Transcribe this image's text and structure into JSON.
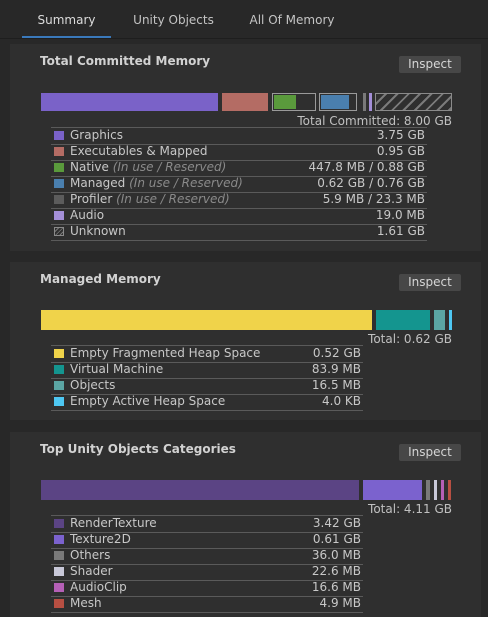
{
  "tabs": [
    {
      "label": "Summary",
      "active": true
    },
    {
      "label": "Unity Objects",
      "active": false
    },
    {
      "label": "All Of Memory",
      "active": false
    }
  ],
  "colors": {
    "graphics": "#7a62c8",
    "executables": "#b46c64",
    "native": "#5a9a3c",
    "managed": "#4a7fae",
    "profiler": "#5c5c5c",
    "audio": "#a48fd8",
    "heap": "#f0d34a",
    "vm": "#14958f",
    "objects": "#5ba5a3",
    "active_heap": "#4ec7f2",
    "render_texture": "#5b4484",
    "texture2d": "#7b62ce",
    "others": "#7a7a7a",
    "shader": "#c8c8d8",
    "audioclip": "#b560b6",
    "mesh": "#b74f42"
  },
  "committed": {
    "title": "Total Committed Memory",
    "inspect_label": "Inspect",
    "total_label": "Total Committed: 8.00 GB",
    "rows": [
      {
        "label": "Graphics",
        "note": "",
        "value": "3.75 GB",
        "icon": "graphics-swatch-icon",
        "color": "#7a62c8"
      },
      {
        "label": "Executables & Mapped",
        "note": "",
        "value": "0.95 GB",
        "icon": "executables-swatch-icon",
        "color": "#b46c64"
      },
      {
        "label": "Native",
        "note": "(In use / Reserved)",
        "value": "447.8 MB / 0.88 GB",
        "icon": "native-swatch-icon",
        "color": "#5a9a3c"
      },
      {
        "label": "Managed",
        "note": "(In use / Reserved)",
        "value": "0.62 GB / 0.76 GB",
        "icon": "managed-swatch-icon",
        "color": "#4a7fae"
      },
      {
        "label": "Profiler",
        "note": "(In use / Reserved)",
        "value": "5.9 MB / 23.3 MB",
        "icon": "profiler-swatch-icon",
        "color": "#5c5c5c"
      },
      {
        "label": "Audio",
        "note": "",
        "value": "19.0 MB",
        "icon": "audio-swatch-icon",
        "color": "#a48fd8"
      },
      {
        "label": "Unknown",
        "note": "",
        "value": "1.61 GB",
        "icon": "unknown-hatched-swatch-icon",
        "color": "hatched"
      }
    ]
  },
  "managed_memory": {
    "title": "Managed Memory",
    "inspect_label": "Inspect",
    "total_label": "Total: 0.62 GB",
    "rows": [
      {
        "label": "Empty Fragmented Heap Space",
        "value": "0.52 GB",
        "icon": "heap-swatch-icon",
        "color": "#f0d34a"
      },
      {
        "label": "Virtual Machine",
        "value": "83.9 MB",
        "icon": "vm-swatch-icon",
        "color": "#14958f"
      },
      {
        "label": "Objects",
        "value": "16.5 MB",
        "icon": "objects-swatch-icon",
        "color": "#5ba5a3"
      },
      {
        "label": "Empty Active Heap Space",
        "value": "4.0 KB",
        "icon": "active-heap-swatch-icon",
        "color": "#4ec7f2"
      }
    ]
  },
  "top_objects": {
    "title": "Top Unity Objects Categories",
    "inspect_label": "Inspect",
    "total_label": "Total: 4.11 GB",
    "rows": [
      {
        "label": "RenderTexture",
        "value": "3.42 GB",
        "icon": "rendertexture-swatch-icon",
        "color": "#5b4484"
      },
      {
        "label": "Texture2D",
        "value": "0.61 GB",
        "icon": "texture2d-swatch-icon",
        "color": "#7b62ce"
      },
      {
        "label": "Others",
        "value": "36.0 MB",
        "icon": "others-swatch-icon",
        "color": "#7a7a7a"
      },
      {
        "label": "Shader",
        "value": "22.6 MB",
        "icon": "shader-swatch-icon",
        "color": "#c8c8d8"
      },
      {
        "label": "AudioClip",
        "value": "16.6 MB",
        "icon": "audioclip-swatch-icon",
        "color": "#b560b6"
      },
      {
        "label": "Mesh",
        "value": "4.9 MB",
        "icon": "mesh-swatch-icon",
        "color": "#b74f42"
      }
    ]
  }
}
